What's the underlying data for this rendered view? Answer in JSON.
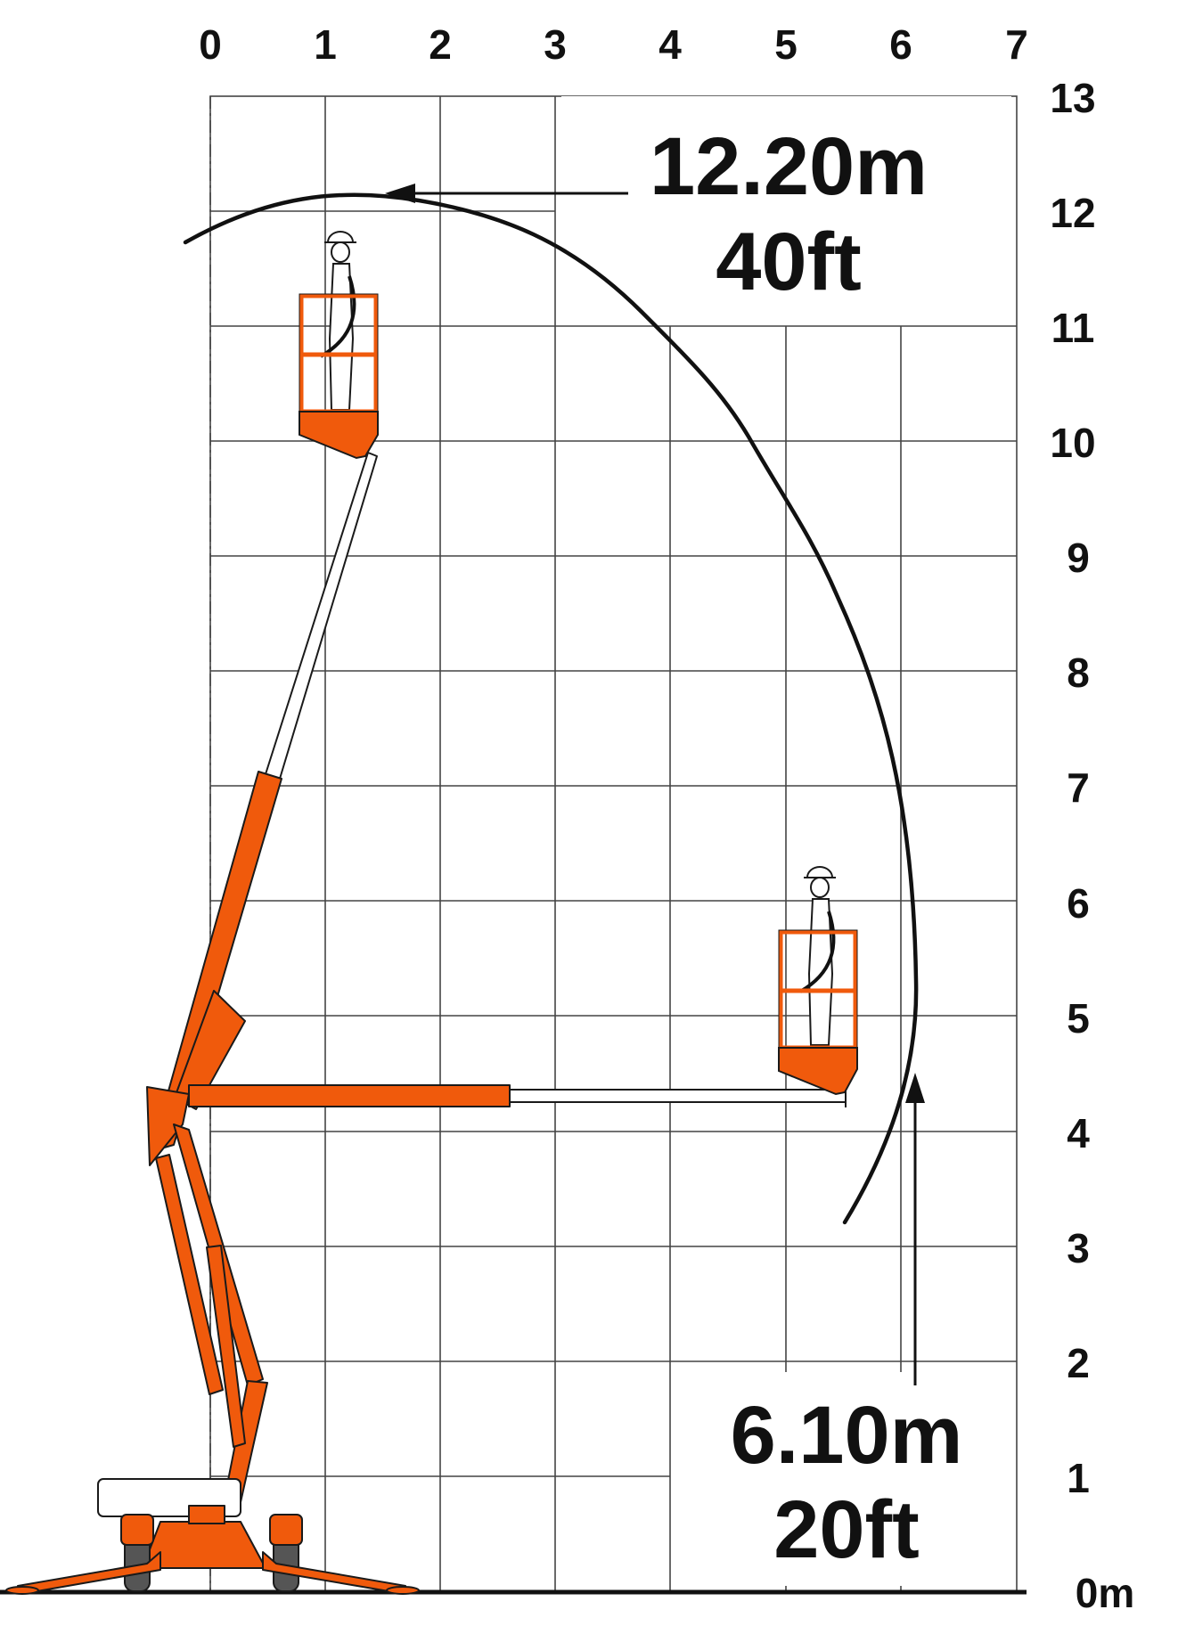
{
  "axes": {
    "x_ticks": [
      "0",
      "1",
      "2",
      "3",
      "4",
      "5",
      "6",
      "7"
    ],
    "y_ticks": [
      "0m",
      "1",
      "2",
      "3",
      "4",
      "5",
      "6",
      "7",
      "8",
      "9",
      "10",
      "11",
      "12",
      "13"
    ],
    "x_unit": "m",
    "y_unit": "m"
  },
  "max_height": {
    "metric": "12.20m",
    "imperial": "40ft",
    "value_m": 12.2
  },
  "max_outreach": {
    "metric": "6.10m",
    "imperial": "20ft",
    "value_m": 6.1
  },
  "colors": {
    "machine": "#f05a0c",
    "grid": "#444444",
    "envelope": "#111111",
    "ground": "#111111"
  },
  "icons": {
    "operator": "worker-with-hard-hat-icon",
    "platform": "work-basket-icon",
    "base": "tracked-base-with-outriggers-icon"
  }
}
